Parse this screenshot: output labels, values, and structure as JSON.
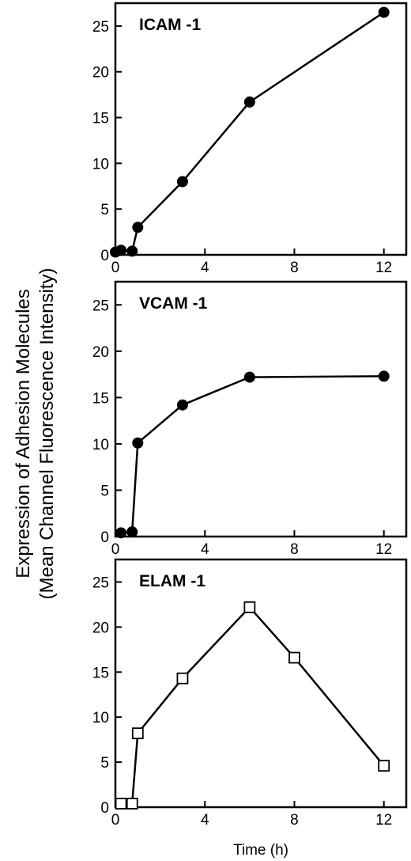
{
  "ylabel_line1": "Expression of Adhesion Molecules",
  "ylabel_line2": "(Mean Channel Fluorescence Intensity)",
  "xlabel": "Time (h)",
  "chart_data": [
    {
      "type": "line",
      "title": "ICAM -1",
      "marker": "filled-circle",
      "x": [
        0,
        0.25,
        0.75,
        1,
        3,
        6,
        12
      ],
      "y": [
        0.3,
        0.5,
        0.4,
        3.0,
        8.0,
        16.7,
        26.5
      ],
      "xlim": [
        0,
        13
      ],
      "ylim": [
        0,
        27.5
      ],
      "xticks": [
        0,
        4,
        8,
        12
      ],
      "yticks": [
        0,
        5,
        10,
        15,
        20,
        25
      ]
    },
    {
      "type": "line",
      "title": "VCAM -1",
      "marker": "filled-circle",
      "x": [
        0.25,
        0.75,
        1,
        3,
        6,
        12
      ],
      "y": [
        0.4,
        0.5,
        10.1,
        14.2,
        17.2,
        17.3
      ],
      "xlim": [
        0,
        13
      ],
      "ylim": [
        0,
        27.5
      ],
      "xticks": [
        0,
        4,
        8,
        12
      ],
      "yticks": [
        0,
        5,
        10,
        15,
        20,
        25
      ]
    },
    {
      "type": "line",
      "title": "ELAM -1",
      "marker": "open-square",
      "x": [
        0.25,
        0.75,
        1,
        3,
        6,
        8,
        12
      ],
      "y": [
        0.4,
        0.4,
        8.2,
        14.3,
        22.2,
        16.6,
        4.6
      ],
      "xlim": [
        0,
        13
      ],
      "ylim": [
        0,
        27.5
      ],
      "xticks": [
        0,
        4,
        8,
        12
      ],
      "yticks": [
        0,
        5,
        10,
        15,
        20,
        25
      ]
    }
  ]
}
